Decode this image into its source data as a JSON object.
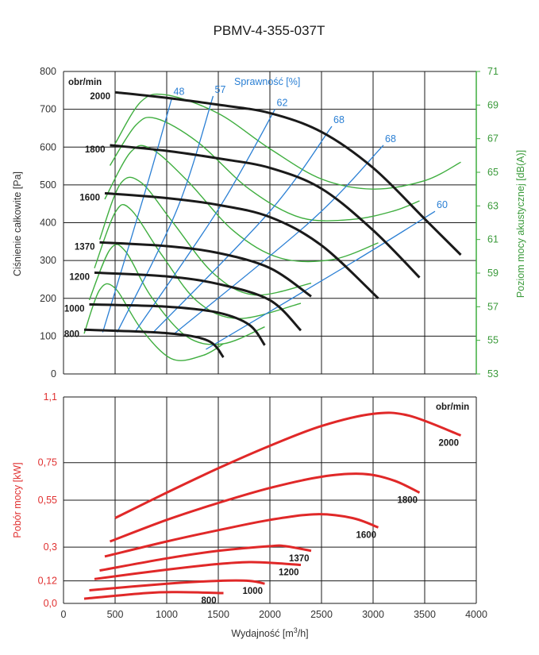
{
  "title": "PBMV-4-355-037T",
  "colors": {
    "pressure": "#1a1a1a",
    "efficiency": "#2a7fd4",
    "sound": "#3fae3f",
    "power": "#e02828"
  },
  "chart_data": [
    {
      "type": "line",
      "name": "pressure-chart",
      "xlabel": "Wydajność [m3/h]",
      "ylabel": "Ciśnienie całkowite [Pa]",
      "y2label": "Poziom mocy akustycznej [dB(A)]",
      "efficiency_label": "Sprawność [%]",
      "rpm_header": "obr/min",
      "xlim": [
        0,
        4000
      ],
      "ylim": [
        0,
        800
      ],
      "y2lim": [
        53,
        71
      ],
      "x_ticks": [
        0,
        500,
        1000,
        1500,
        2000,
        2500,
        3000,
        3500,
        4000
      ],
      "y_ticks": [
        0,
        100,
        200,
        300,
        400,
        500,
        600,
        700,
        800
      ],
      "y2_ticks": [
        53,
        55,
        57,
        59,
        61,
        63,
        65,
        67,
        69,
        71
      ],
      "pressure_series": [
        {
          "name": "2000",
          "x": [
            500,
            1000,
            1500,
            2000,
            2500,
            3000,
            3500,
            3850
          ],
          "y": [
            745,
            730,
            712,
            690,
            640,
            545,
            410,
            315
          ]
        },
        {
          "name": "1800",
          "x": [
            450,
            1000,
            1500,
            2000,
            2500,
            3000,
            3450
          ],
          "y": [
            605,
            590,
            570,
            545,
            490,
            380,
            255
          ]
        },
        {
          "name": "1600",
          "x": [
            400,
            1000,
            1500,
            2000,
            2500,
            3050
          ],
          "y": [
            478,
            465,
            447,
            415,
            340,
            200
          ]
        },
        {
          "name": "1370",
          "x": [
            350,
            1000,
            1500,
            2000,
            2400
          ],
          "y": [
            348,
            338,
            320,
            280,
            205
          ]
        },
        {
          "name": "1200",
          "x": [
            300,
            1000,
            1500,
            2000,
            2300
          ],
          "y": [
            268,
            258,
            238,
            195,
            115
          ]
        },
        {
          "name": "1000",
          "x": [
            250,
            1000,
            1500,
            1800,
            1950
          ],
          "y": [
            184,
            178,
            162,
            130,
            76
          ]
        },
        {
          "name": "800",
          "x": [
            200,
            1000,
            1400,
            1550
          ],
          "y": [
            117,
            108,
            88,
            44
          ]
        }
      ],
      "efficiency_lines": [
        {
          "label": "48",
          "x": [
            380,
            800,
            1050
          ],
          "y": [
            110,
            490,
            730
          ]
        },
        {
          "label": "57",
          "x": [
            520,
            1100,
            1450
          ],
          "y": [
            110,
            435,
            735
          ]
        },
        {
          "label": "62",
          "x": [
            690,
            1500,
            2050
          ],
          "y": [
            110,
            435,
            700
          ]
        },
        {
          "label": "68",
          "x": [
            870,
            2000,
            2600
          ],
          "y": [
            110,
            430,
            655
          ]
        },
        {
          "label": "68",
          "x": [
            1080,
            2400,
            3100
          ],
          "y": [
            108,
            405,
            605
          ]
        },
        {
          "label": "60",
          "x": [
            1380,
            2800,
            3600
          ],
          "y": [
            65,
            295,
            430
          ]
        }
      ],
      "sound_series": [
        {
          "name": "2000",
          "x": [
            500,
            750,
            1000,
            1500,
            2000,
            2500,
            3000,
            3500,
            3850
          ],
          "y": [
            66.7,
            69.2,
            69.6,
            68.5,
            66.4,
            64.6,
            64.0,
            64.5,
            65.6
          ]
        },
        {
          "name": "1800",
          "x": [
            450,
            700,
            900,
            1300,
            1800,
            2300,
            2800,
            3200,
            3450
          ],
          "y": [
            65.4,
            67.8,
            68.2,
            66.8,
            64.0,
            62.3,
            62.2,
            62.7,
            63.3
          ]
        },
        {
          "name": "1600",
          "x": [
            400,
            650,
            850,
            1200,
            1650,
            2100,
            2600,
            3050
          ],
          "y": [
            63.4,
            66.2,
            66.4,
            64.5,
            61.5,
            59.9,
            59.8,
            60.8
          ]
        },
        {
          "name": "1370",
          "x": [
            350,
            550,
            750,
            1050,
            1450,
            1850,
            2400
          ],
          "y": [
            61.0,
            64.3,
            64.4,
            62.1,
            59.0,
            57.7,
            58.4
          ]
        },
        {
          "name": "1200",
          "x": [
            300,
            500,
            650,
            950,
            1300,
            1700,
            2300
          ],
          "y": [
            59.3,
            62.6,
            62.8,
            60.1,
            57.3,
            56.3,
            57.2
          ]
        },
        {
          "name": "1000",
          "x": [
            250,
            450,
            600,
            850,
            1200,
            1550,
            1950
          ],
          "y": [
            57.4,
            60.4,
            60.3,
            57.6,
            55.2,
            54.8,
            55.8
          ]
        },
        {
          "name": "800",
          "x": [
            200,
            350,
            500,
            750,
            1050,
            1350,
            1550
          ],
          "y": [
            55.4,
            58.0,
            58.1,
            55.7,
            53.9,
            54.1,
            54.8
          ]
        }
      ]
    },
    {
      "type": "line",
      "name": "power-chart",
      "xlabel": "Wydajność [m3/h]",
      "ylabel": "Pobór mocy [kW]",
      "rpm_header": "obr/min",
      "xlim": [
        0,
        4000
      ],
      "ylim": [
        0,
        1.1
      ],
      "x_ticks": [
        0,
        500,
        1000,
        1500,
        2000,
        2500,
        3000,
        3500,
        4000
      ],
      "x_tick_labels": [
        "0",
        "500",
        "1000",
        "1500",
        "2000",
        "2500",
        "3000",
        "3500",
        "4000"
      ],
      "y_ticks": [
        0,
        0.12,
        0.3,
        0.55,
        0.75,
        1.1
      ],
      "y_tick_labels": [
        "0,0",
        "0,12",
        "0,3",
        "0,55",
        "0,75",
        "1,1"
      ],
      "series": [
        {
          "name": "2000",
          "x": [
            500,
            1000,
            1500,
            2000,
            2500,
            3000,
            3350,
            3850
          ],
          "y": [
            0.455,
            0.59,
            0.72,
            0.84,
            0.945,
            1.01,
            1.0,
            0.895
          ]
        },
        {
          "name": "1800",
          "x": [
            450,
            1000,
            1500,
            2000,
            2500,
            2900,
            3200,
            3450
          ],
          "y": [
            0.33,
            0.445,
            0.535,
            0.615,
            0.675,
            0.69,
            0.655,
            0.59
          ]
        },
        {
          "name": "1600",
          "x": [
            400,
            1000,
            1500,
            2000,
            2450,
            2800,
            3050
          ],
          "y": [
            0.25,
            0.33,
            0.39,
            0.445,
            0.475,
            0.455,
            0.405
          ]
        },
        {
          "name": "1370",
          "x": [
            350,
            1000,
            1500,
            2000,
            2150,
            2400
          ],
          "y": [
            0.175,
            0.24,
            0.28,
            0.305,
            0.305,
            0.28
          ]
        },
        {
          "name": "1200",
          "x": [
            300,
            1000,
            1500,
            1800,
            2050,
            2300
          ],
          "y": [
            0.13,
            0.18,
            0.21,
            0.22,
            0.215,
            0.205
          ]
        },
        {
          "name": "1000",
          "x": [
            250,
            1000,
            1500,
            1800,
            1950
          ],
          "y": [
            0.07,
            0.105,
            0.12,
            0.12,
            0.105
          ]
        },
        {
          "name": "800",
          "x": [
            200,
            800,
            1100,
            1550
          ],
          "y": [
            0.025,
            0.055,
            0.06,
            0.055
          ]
        }
      ],
      "series_label_text": [
        "2000",
        "1800",
        "1600",
        "1370",
        "1200",
        "1000",
        "800"
      ]
    }
  ]
}
